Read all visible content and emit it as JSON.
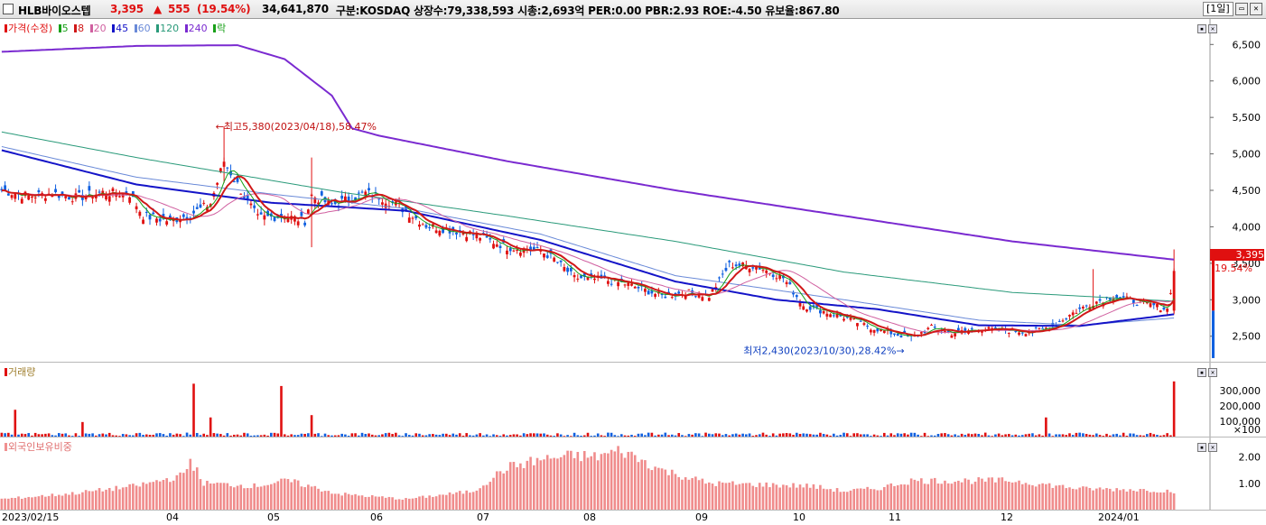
{
  "header": {
    "name": "HLB바이오스텝",
    "price": "3,395",
    "change_arrow": "▲",
    "change": "555",
    "change_pct": "(19.54%)",
    "volume": "34,641,870",
    "info": "구분:KOSDAQ 상장수:79,338,593 시총:2,693억 PER:0.00 PBR:2.93 ROE:-4.50 유보율:867.80",
    "period": "[1일]"
  },
  "legend": {
    "price": "가격(수정)",
    "ma": [
      "5",
      "8",
      "20",
      "45",
      "60",
      "120",
      "240"
    ],
    "fall": "락",
    "colors": {
      "price": "#e01010",
      "ma5": "#18a018",
      "ma8": "#d01818",
      "ma20": "#d060a0",
      "ma45": "#1414c8",
      "ma60": "#6a8ad8",
      "ma120": "#2a9a7a",
      "ma240": "#7a2ad0",
      "fall": "#18a018"
    }
  },
  "volume_legend": "거래량",
  "foreign_legend": "외국인보유비중",
  "annotations": {
    "high": "←최고5,380(2023/04/18),58.47%",
    "low": "최저2,430(2023/10/30),28.42%→"
  },
  "current": {
    "tag": "3,395",
    "pct": "19.54%"
  },
  "price_axis": [
    "6,500",
    "6,000",
    "5,500",
    "5,000",
    "4,500",
    "4,000",
    "3,500",
    "3,000",
    "2,500"
  ],
  "volume_axis": [
    "300,000",
    "200,000",
    "100,000",
    "×100"
  ],
  "foreign_axis": [
    "2.00",
    "1.00"
  ],
  "date_labels": [
    "2023/02/15",
    "04",
    "05",
    "06",
    "07",
    "08",
    "09",
    "10",
    "11",
    "12",
    "2024/01"
  ],
  "chart_data": {
    "type": "candlestick",
    "price_range": [
      2150,
      6850
    ],
    "close_keypoints": [
      [
        0,
        4500
      ],
      [
        8,
        4420
      ],
      [
        15,
        4460
      ],
      [
        22,
        4400
      ],
      [
        30,
        4470
      ],
      [
        38,
        4450
      ],
      [
        42,
        4150
      ],
      [
        50,
        4080
      ],
      [
        56,
        4170
      ],
      [
        62,
        4320
      ],
      [
        66,
        4900
      ],
      [
        70,
        4580
      ],
      [
        76,
        4120
      ],
      [
        84,
        4150
      ],
      [
        90,
        4080
      ],
      [
        92,
        4430
      ],
      [
        98,
        4300
      ],
      [
        108,
        4460
      ],
      [
        112,
        4420
      ],
      [
        118,
        4280
      ],
      [
        126,
        4020
      ],
      [
        134,
        3950
      ],
      [
        140,
        3900
      ],
      [
        150,
        3720
      ],
      [
        160,
        3670
      ],
      [
        164,
        3560
      ],
      [
        170,
        3300
      ],
      [
        178,
        3280
      ],
      [
        186,
        3210
      ],
      [
        196,
        3050
      ],
      [
        204,
        3100
      ],
      [
        210,
        3050
      ],
      [
        216,
        3480
      ],
      [
        224,
        3460
      ],
      [
        232,
        3300
      ],
      [
        238,
        2920
      ],
      [
        244,
        2840
      ],
      [
        250,
        2760
      ],
      [
        258,
        2620
      ],
      [
        266,
        2520
      ],
      [
        270,
        2480
      ],
      [
        276,
        2620
      ],
      [
        282,
        2540
      ],
      [
        290,
        2600
      ],
      [
        298,
        2580
      ],
      [
        306,
        2560
      ],
      [
        312,
        2640
      ],
      [
        318,
        2820
      ],
      [
        324,
        2960
      ],
      [
        330,
        3050
      ],
      [
        336,
        2980
      ],
      [
        342,
        2920
      ],
      [
        346,
        2870
      ],
      [
        348,
        3395
      ]
    ],
    "ma240_keypoints": [
      [
        0,
        6400
      ],
      [
        40,
        6480
      ],
      [
        70,
        6490
      ],
      [
        84,
        6300
      ],
      [
        98,
        5800
      ],
      [
        104,
        5350
      ],
      [
        112,
        5250
      ],
      [
        150,
        4900
      ],
      [
        200,
        4500
      ],
      [
        250,
        4150
      ],
      [
        300,
        3800
      ],
      [
        348,
        3550
      ]
    ],
    "ma120_keypoints": [
      [
        0,
        5300
      ],
      [
        40,
        4950
      ],
      [
        100,
        4480
      ],
      [
        150,
        4150
      ],
      [
        200,
        3800
      ],
      [
        250,
        3380
      ],
      [
        300,
        3100
      ],
      [
        348,
        2980
      ]
    ],
    "ma60_keypoints": [
      [
        0,
        5100
      ],
      [
        40,
        4680
      ],
      [
        80,
        4450
      ],
      [
        120,
        4250
      ],
      [
        160,
        3900
      ],
      [
        200,
        3330
      ],
      [
        250,
        3000
      ],
      [
        290,
        2720
      ],
      [
        320,
        2650
      ],
      [
        348,
        2750
      ]
    ],
    "ma45_keypoints": [
      [
        0,
        5050
      ],
      [
        40,
        4580
      ],
      [
        80,
        4330
      ],
      [
        120,
        4220
      ],
      [
        160,
        3820
      ],
      [
        200,
        3250
      ],
      [
        230,
        3000
      ],
      [
        260,
        2870
      ],
      [
        290,
        2650
      ],
      [
        320,
        2640
      ],
      [
        348,
        2800
      ]
    ],
    "volume_spikes": [
      [
        4,
        175000
      ],
      [
        57,
        345000
      ],
      [
        83,
        330000
      ],
      [
        92,
        140000
      ],
      [
        24,
        95000
      ],
      [
        62,
        125000
      ],
      [
        310,
        125000
      ],
      [
        348,
        360000
      ]
    ],
    "volume_range": [
      0,
      400000
    ],
    "foreign_keypoints": [
      [
        0,
        0.4
      ],
      [
        20,
        0.6
      ],
      [
        40,
        0.9
      ],
      [
        54,
        1.3
      ],
      [
        56,
        1.9
      ],
      [
        60,
        1.0
      ],
      [
        75,
        0.9
      ],
      [
        85,
        1.1
      ],
      [
        100,
        0.6
      ],
      [
        120,
        0.4
      ],
      [
        140,
        0.7
      ],
      [
        150,
        1.6
      ],
      [
        160,
        1.9
      ],
      [
        170,
        2.05
      ],
      [
        176,
        2.0
      ],
      [
        184,
        2.25
      ],
      [
        196,
        1.5
      ],
      [
        210,
        1.0
      ],
      [
        240,
        0.9
      ],
      [
        250,
        0.7
      ],
      [
        260,
        0.8
      ],
      [
        270,
        1.1
      ],
      [
        300,
        1.1
      ],
      [
        320,
        0.8
      ],
      [
        340,
        0.75
      ],
      [
        348,
        0.7
      ]
    ],
    "foreign_range": [
      0,
      2.6
    ],
    "n_days": 349
  }
}
